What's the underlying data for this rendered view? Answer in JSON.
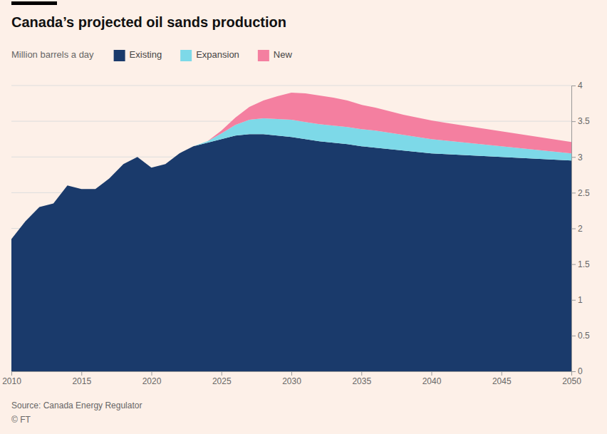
{
  "chart_data": {
    "type": "area",
    "stacked": true,
    "grid": true,
    "title": "Canada’s projected oil sands production",
    "subtitle": "Million barrels a day",
    "annotations": [
      "Source: Canada Energy Regulator",
      "© FT"
    ],
    "x": [
      2010,
      2011,
      2012,
      2013,
      2014,
      2015,
      2016,
      2017,
      2018,
      2019,
      2020,
      2021,
      2022,
      2023,
      2024,
      2025,
      2026,
      2027,
      2028,
      2029,
      2030,
      2031,
      2032,
      2033,
      2034,
      2035,
      2036,
      2037,
      2038,
      2039,
      2040,
      2041,
      2042,
      2043,
      2044,
      2045,
      2046,
      2047,
      2048,
      2049,
      2050
    ],
    "series": [
      {
        "name": "Existing",
        "color": "#1a3a6b",
        "values": [
          1.85,
          2.1,
          2.3,
          2.35,
          2.6,
          2.55,
          2.55,
          2.7,
          2.9,
          3.0,
          2.85,
          2.9,
          3.05,
          3.15,
          3.2,
          3.25,
          3.3,
          3.32,
          3.32,
          3.3,
          3.28,
          3.25,
          3.22,
          3.2,
          3.18,
          3.15,
          3.13,
          3.11,
          3.09,
          3.07,
          3.05,
          3.04,
          3.03,
          3.02,
          3.01,
          3.0,
          2.99,
          2.98,
          2.97,
          2.96,
          2.95
        ]
      },
      {
        "name": "Expansion",
        "color": "#7dd9e8",
        "values": [
          0.0,
          0.0,
          0.0,
          0.0,
          0.0,
          0.0,
          0.0,
          0.0,
          0.0,
          0.0,
          0.0,
          0.0,
          0.0,
          0.0,
          0.02,
          0.08,
          0.15,
          0.2,
          0.22,
          0.23,
          0.24,
          0.24,
          0.24,
          0.24,
          0.24,
          0.24,
          0.24,
          0.23,
          0.22,
          0.21,
          0.2,
          0.19,
          0.18,
          0.17,
          0.16,
          0.15,
          0.14,
          0.13,
          0.12,
          0.11,
          0.1
        ]
      },
      {
        "name": "New",
        "color": "#f47fa0",
        "values": [
          0.0,
          0.0,
          0.0,
          0.0,
          0.0,
          0.0,
          0.0,
          0.0,
          0.0,
          0.0,
          0.0,
          0.0,
          0.0,
          0.0,
          0.0,
          0.04,
          0.1,
          0.18,
          0.25,
          0.32,
          0.38,
          0.4,
          0.4,
          0.39,
          0.37,
          0.34,
          0.32,
          0.3,
          0.28,
          0.27,
          0.26,
          0.25,
          0.24,
          0.23,
          0.22,
          0.21,
          0.2,
          0.19,
          0.18,
          0.17,
          0.16
        ]
      }
    ],
    "xlim": [
      2010,
      2050
    ],
    "xticks": [
      2010,
      2015,
      2020,
      2025,
      2030,
      2035,
      2040,
      2045,
      2050
    ],
    "ylim": [
      0,
      4
    ],
    "yticks": [
      0,
      0.5,
      1,
      1.5,
      2,
      2.5,
      3,
      3.5,
      4
    ]
  }
}
